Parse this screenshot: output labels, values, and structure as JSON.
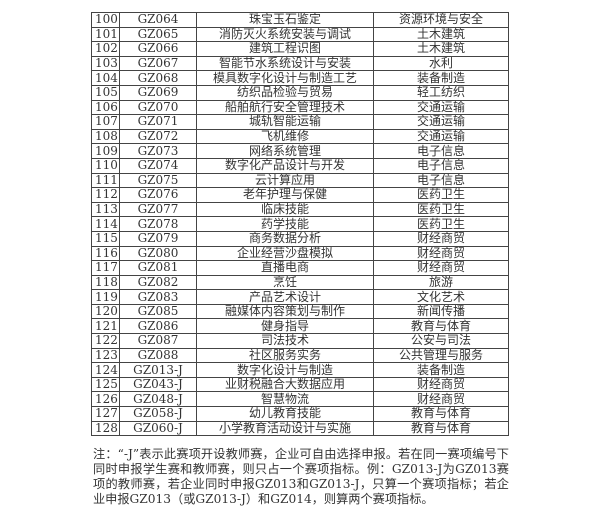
{
  "table": {
    "rows": [
      [
        "100",
        "GZ064",
        "珠宝玉石鉴定",
        "资源环境与安全"
      ],
      [
        "101",
        "GZ065",
        "消防灭火系统安装与调试",
        "土木建筑"
      ],
      [
        "102",
        "GZ066",
        "建筑工程识图",
        "土木建筑"
      ],
      [
        "103",
        "GZ067",
        "智能节水系统设计与安装",
        "水利"
      ],
      [
        "104",
        "GZ068",
        "模具数字化设计与制造工艺",
        "装备制造"
      ],
      [
        "105",
        "GZ069",
        "纺织品检验与贸易",
        "轻工纺织"
      ],
      [
        "106",
        "GZ070",
        "船舶航行安全管理技术",
        "交通运输"
      ],
      [
        "107",
        "GZ071",
        "城轨智能运输",
        "交通运输"
      ],
      [
        "108",
        "GZ072",
        "飞机维修",
        "交通运输"
      ],
      [
        "109",
        "GZ073",
        "网络系统管理",
        "电子信息"
      ],
      [
        "110",
        "GZ074",
        "数字化产品设计与开发",
        "电子信息"
      ],
      [
        "111",
        "GZ075",
        "云计算应用",
        "电子信息"
      ],
      [
        "112",
        "GZ076",
        "老年护理与保健",
        "医药卫生"
      ],
      [
        "113",
        "GZ077",
        "临床技能",
        "医药卫生"
      ],
      [
        "114",
        "GZ078",
        "药学技能",
        "医药卫生"
      ],
      [
        "115",
        "GZ079",
        "商务数据分析",
        "财经商贸"
      ],
      [
        "116",
        "GZ080",
        "企业经营沙盘模拟",
        "财经商贸"
      ],
      [
        "117",
        "GZ081",
        "直播电商",
        "财经商贸"
      ],
      [
        "118",
        "GZ082",
        "烹饪",
        "旅游"
      ],
      [
        "119",
        "GZ083",
        "产品艺术设计",
        "文化艺术"
      ],
      [
        "120",
        "GZ085",
        "融媒体内容策划与制作",
        "新闻传播"
      ],
      [
        "121",
        "GZ086",
        "健身指导",
        "教育与体育"
      ],
      [
        "122",
        "GZ087",
        "司法技术",
        "公安与司法"
      ],
      [
        "123",
        "GZ088",
        "社区服务实务",
        "公共管理与服务"
      ],
      [
        "124",
        "GZ013-J",
        "数字化设计与制造",
        "装备制造"
      ],
      [
        "125",
        "GZ043-J",
        "业财税融合大数据应用",
        "财经商贸"
      ],
      [
        "126",
        "GZ048-J",
        "智慧物流",
        "财经商贸"
      ],
      [
        "127",
        "GZ058-J",
        "幼儿教育技能",
        "教育与体育"
      ],
      [
        "128",
        "GZ060-J",
        "小学教育活动设计与实施",
        "教育与体育"
      ]
    ]
  },
  "note": "注：“-J”表示此赛项开设教师赛，企业可自由选择申报。若在同一赛项编号下同时申报学生赛和教师赛，则只占一个赛项指标。例：GZ013-J为GZ013赛项的教师赛，若企业同时申报GZ013和GZ013-J，只算一个赛项指标；若企业申报GZ013（或GZ013-J）和GZ014，则算两个赛项指标。"
}
